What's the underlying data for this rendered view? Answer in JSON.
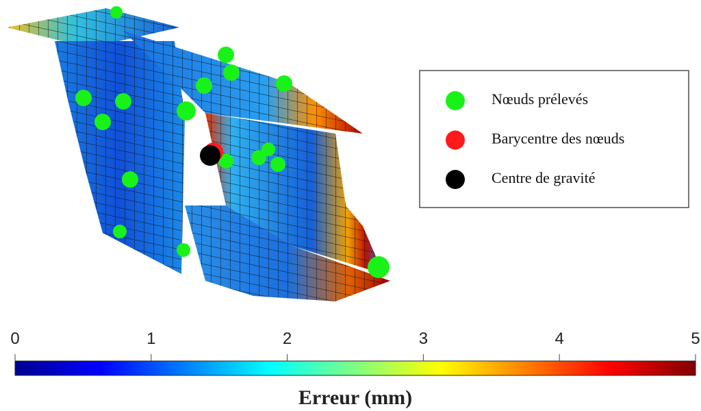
{
  "chart_data": {
    "type": "colorbar",
    "legend": [
      {
        "name": "Nœuds prélevés",
        "color": "#19f219"
      },
      {
        "name": "Barycentre des nœuds",
        "color": "#ff1a1a"
      },
      {
        "name": "Centre de gravité",
        "color": "#000000"
      }
    ],
    "colorbar": {
      "label": "Erreur (mm)",
      "lim": [
        0,
        5
      ],
      "ticks": [
        0,
        1,
        2,
        3,
        4,
        5
      ],
      "colormap": "jet"
    }
  }
}
